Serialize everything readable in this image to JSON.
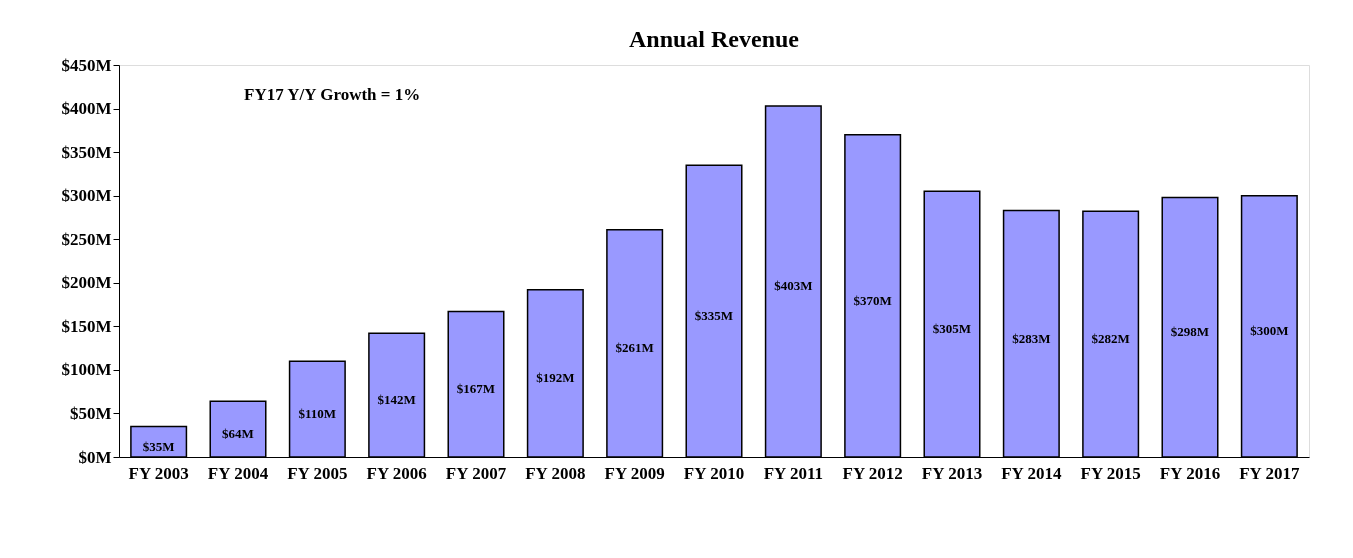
{
  "chart_data": {
    "type": "bar",
    "title": "Annual Revenue",
    "categories": [
      "FY 2003",
      "FY 2004",
      "FY 2005",
      "FY 2006",
      "FY 2007",
      "FY 2008",
      "FY 2009",
      "FY 2010",
      "FY 2011",
      "FY 2012",
      "FY 2013",
      "FY 2014",
      "FY 2015",
      "FY 2016",
      "FY 2017"
    ],
    "values": [
      35,
      64,
      110,
      142,
      167,
      192,
      261,
      335,
      403,
      370,
      305,
      283,
      282,
      298,
      300
    ],
    "value_labels": [
      "$35M",
      "$64M",
      "$110M",
      "$142M",
      "$167M",
      "$192M",
      "$261M",
      "$335M",
      "$403M",
      "$370M",
      "$305M",
      "$283M",
      "$282M",
      "$298M",
      "$300M"
    ],
    "color": "#9999ff",
    "ylim": [
      0,
      450
    ],
    "yticks": [
      {
        "value": 0,
        "label": "$0M"
      },
      {
        "value": 50,
        "label": "$50M"
      },
      {
        "value": 100,
        "label": "$100M"
      },
      {
        "value": 150,
        "label": "$150M"
      },
      {
        "value": 200,
        "label": "$200M"
      },
      {
        "value": 250,
        "label": "$250M"
      },
      {
        "value": 300,
        "label": "$300M"
      },
      {
        "value": 350,
        "label": "$350M"
      },
      {
        "value": 400,
        "label": "$400M"
      },
      {
        "value": 450,
        "label": "$450M"
      }
    ],
    "annotations": [
      "FY17 Y/Y Growth  =  1%"
    ],
    "grid": false
  }
}
